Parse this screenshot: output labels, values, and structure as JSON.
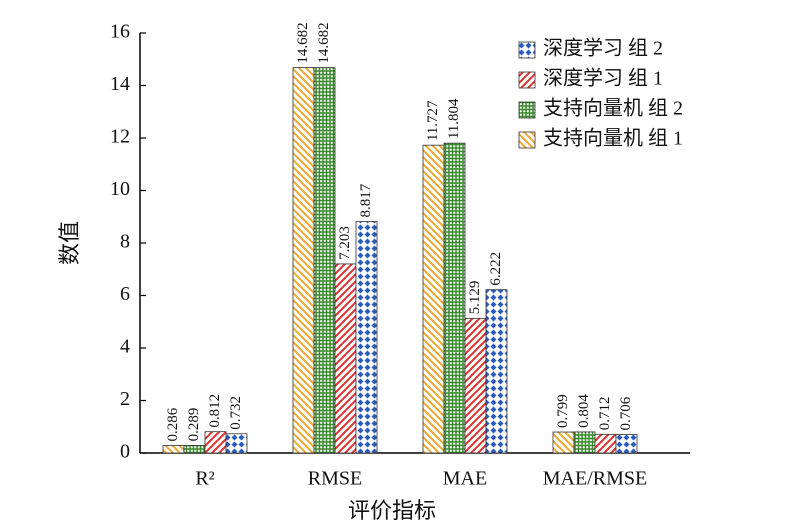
{
  "chart_data": {
    "type": "bar",
    "categories": [
      "R²",
      "RMSE",
      "MAE",
      "MAE/RMSE"
    ],
    "series": [
      {
        "name": "支持向量机 组 1",
        "color": "#f0a830",
        "values": [
          0.286,
          14.682,
          11.727,
          0.799
        ]
      },
      {
        "name": "支持向量机 组 2",
        "color": "#3a8a2e",
        "values": [
          0.289,
          14.682,
          11.804,
          0.804
        ]
      },
      {
        "name": "深度学习 组 1",
        "color": "#e03030",
        "values": [
          0.812,
          7.203,
          5.129,
          0.712
        ]
      },
      {
        "name": "深度学习 组 2",
        "color": "#2a5cc0",
        "values": [
          0.732,
          8.817,
          6.222,
          0.706
        ]
      }
    ],
    "xlabel": "评价指标",
    "ylabel": "数值",
    "ylim": [
      0,
      16
    ],
    "yticks": [
      0,
      2,
      4,
      6,
      8,
      10,
      12,
      14,
      16
    ],
    "grid": false
  }
}
